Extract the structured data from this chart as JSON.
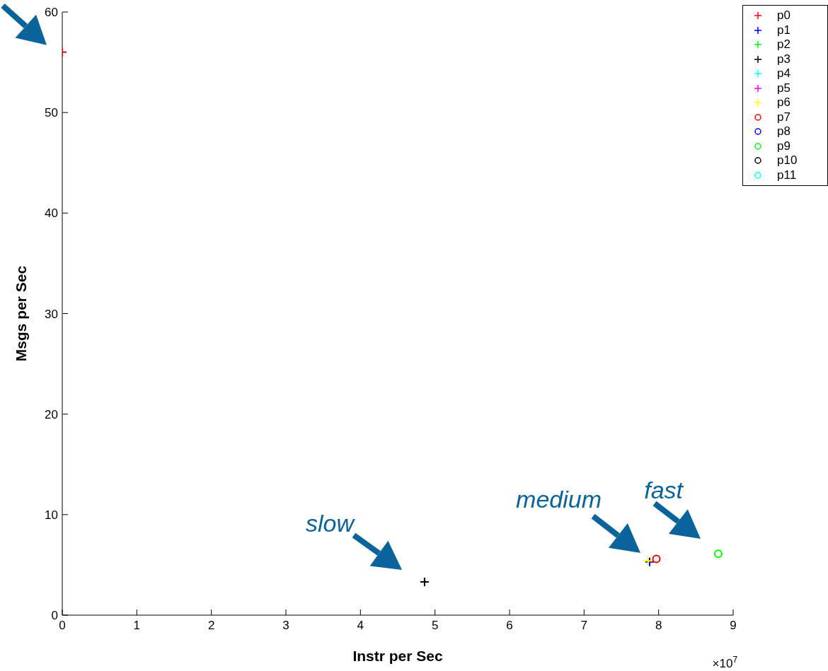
{
  "chart_data": {
    "type": "scatter",
    "xlabel": "Instr per Sec",
    "ylabel": "Msgs per Sec",
    "xlim": [
      0,
      9
    ],
    "xticks": [
      0,
      1,
      2,
      3,
      4,
      5,
      6,
      7,
      8,
      9
    ],
    "ylim": [
      0,
      60
    ],
    "yticks": [
      0,
      10,
      20,
      30,
      40,
      50,
      60
    ],
    "grid": false,
    "legend": "top right",
    "series": [
      {
        "name": "p0",
        "color": "#ff0000",
        "marker": "cross",
        "x": [
          0
        ],
        "values": [
          56
        ]
      },
      {
        "name": "p1",
        "color": "#0000ff",
        "marker": "cross",
        "x": [
          7.88
        ],
        "values": [
          5.3
        ]
      },
      {
        "name": "p2",
        "color": "#00ff00",
        "marker": "cross",
        "x": [
          null
        ],
        "values": [
          null
        ]
      },
      {
        "name": "p3",
        "color": "#000000",
        "marker": "cross",
        "x": [
          4.86
        ],
        "values": [
          3.3
        ]
      },
      {
        "name": "p4",
        "color": "#00ffff",
        "marker": "cross",
        "x": [
          null
        ],
        "values": [
          null
        ]
      },
      {
        "name": "p5",
        "color": "#ff00ff",
        "marker": "cross",
        "x": [
          null
        ],
        "values": [
          null
        ]
      },
      {
        "name": "p6",
        "color": "#ffff00",
        "marker": "cross",
        "x": [
          7.86
        ],
        "values": [
          5.4
        ]
      },
      {
        "name": "p7",
        "color": "#ff0000",
        "marker": "circle",
        "x": [
          7.97
        ],
        "values": [
          5.6
        ]
      },
      {
        "name": "p8",
        "color": "#0000ff",
        "marker": "circle",
        "x": [
          null
        ],
        "values": [
          null
        ]
      },
      {
        "name": "p9",
        "color": "#00ff00",
        "marker": "circle",
        "x": [
          8.8
        ],
        "values": [
          6.1
        ]
      },
      {
        "name": "p10",
        "color": "#000000",
        "marker": "circle",
        "x": [
          null
        ],
        "values": [
          null
        ]
      },
      {
        "name": "p11",
        "color": "#00ffff",
        "marker": "circle",
        "x": [
          null
        ],
        "values": [
          null
        ]
      }
    ],
    "annotations": [
      "slow",
      "medium",
      "fast",
      "×10$^{7}$"
    ]
  }
}
